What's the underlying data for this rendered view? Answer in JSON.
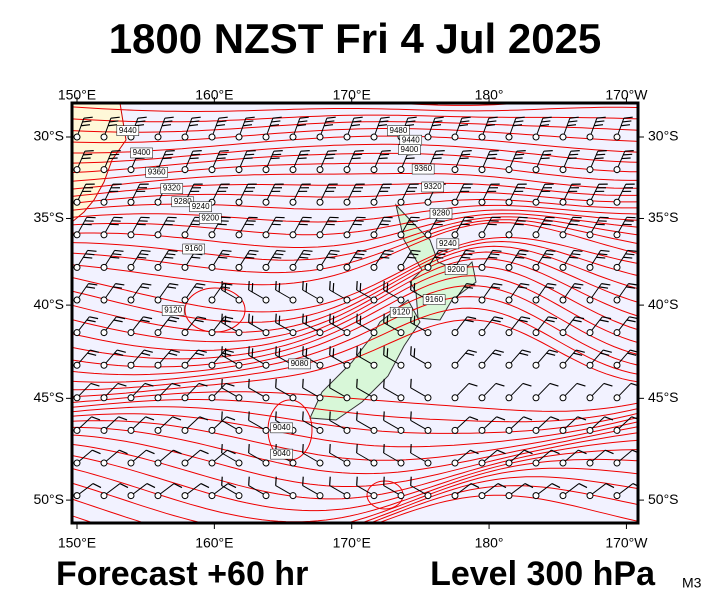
{
  "title": "1800 NZST Fri 4 Jul 2025",
  "footer": {
    "forecast": "Forecast +60 hr",
    "level": "Level 300 hPa",
    "model": "M3"
  },
  "map": {
    "lon_ticks": [
      {
        "value": 150,
        "label": "150°E"
      },
      {
        "value": 160,
        "label": "160°E"
      },
      {
        "value": 170,
        "label": "170°E"
      },
      {
        "value": 180,
        "label": "180°"
      },
      {
        "value": 190,
        "label": "170°W"
      }
    ],
    "lat_ticks": [
      {
        "value": 30,
        "label": "30°S"
      },
      {
        "value": 35,
        "label": "35°S"
      },
      {
        "value": 40,
        "label": "40°S"
      },
      {
        "value": 45,
        "label": "45°S"
      },
      {
        "value": 50,
        "label": "50°S"
      }
    ],
    "contour_labels": [
      {
        "value": 9440,
        "lon": 153.7,
        "lat": 29.6
      },
      {
        "value": 9400,
        "lon": 154.7,
        "lat": 31.0
      },
      {
        "value": 9360,
        "lon": 155.8,
        "lat": 32.2
      },
      {
        "value": 9320,
        "lon": 156.9,
        "lat": 33.2
      },
      {
        "value": 9280,
        "lon": 157.7,
        "lat": 34.0
      },
      {
        "value": 9240,
        "lon": 159.0,
        "lat": 34.3
      },
      {
        "value": 9200,
        "lon": 159.7,
        "lat": 35.0
      },
      {
        "value": 9160,
        "lon": 158.5,
        "lat": 36.8
      },
      {
        "value": 9120,
        "lon": 157.0,
        "lat": 40.3
      },
      {
        "value": 9080,
        "lon": 166.2,
        "lat": 43.2
      },
      {
        "value": 9040,
        "lon": 164.9,
        "lat": 46.5
      },
      {
        "value": 9040,
        "lon": 164.9,
        "lat": 47.8
      },
      {
        "value": 9480,
        "lon": 173.4,
        "lat": 29.6
      },
      {
        "value": 9440,
        "lon": 174.3,
        "lat": 30.2
      },
      {
        "value": 9400,
        "lon": 174.2,
        "lat": 30.8
      },
      {
        "value": 9360,
        "lon": 175.2,
        "lat": 32.0
      },
      {
        "value": 9320,
        "lon": 175.9,
        "lat": 33.1
      },
      {
        "value": 9280,
        "lon": 176.5,
        "lat": 34.7
      },
      {
        "value": 9240,
        "lon": 177.0,
        "lat": 36.5
      },
      {
        "value": 9200,
        "lon": 177.6,
        "lat": 38.0
      },
      {
        "value": 9160,
        "lon": 176.0,
        "lat": 39.7
      },
      {
        "value": 9120,
        "lon": 173.6,
        "lat": 40.4
      }
    ]
  }
}
